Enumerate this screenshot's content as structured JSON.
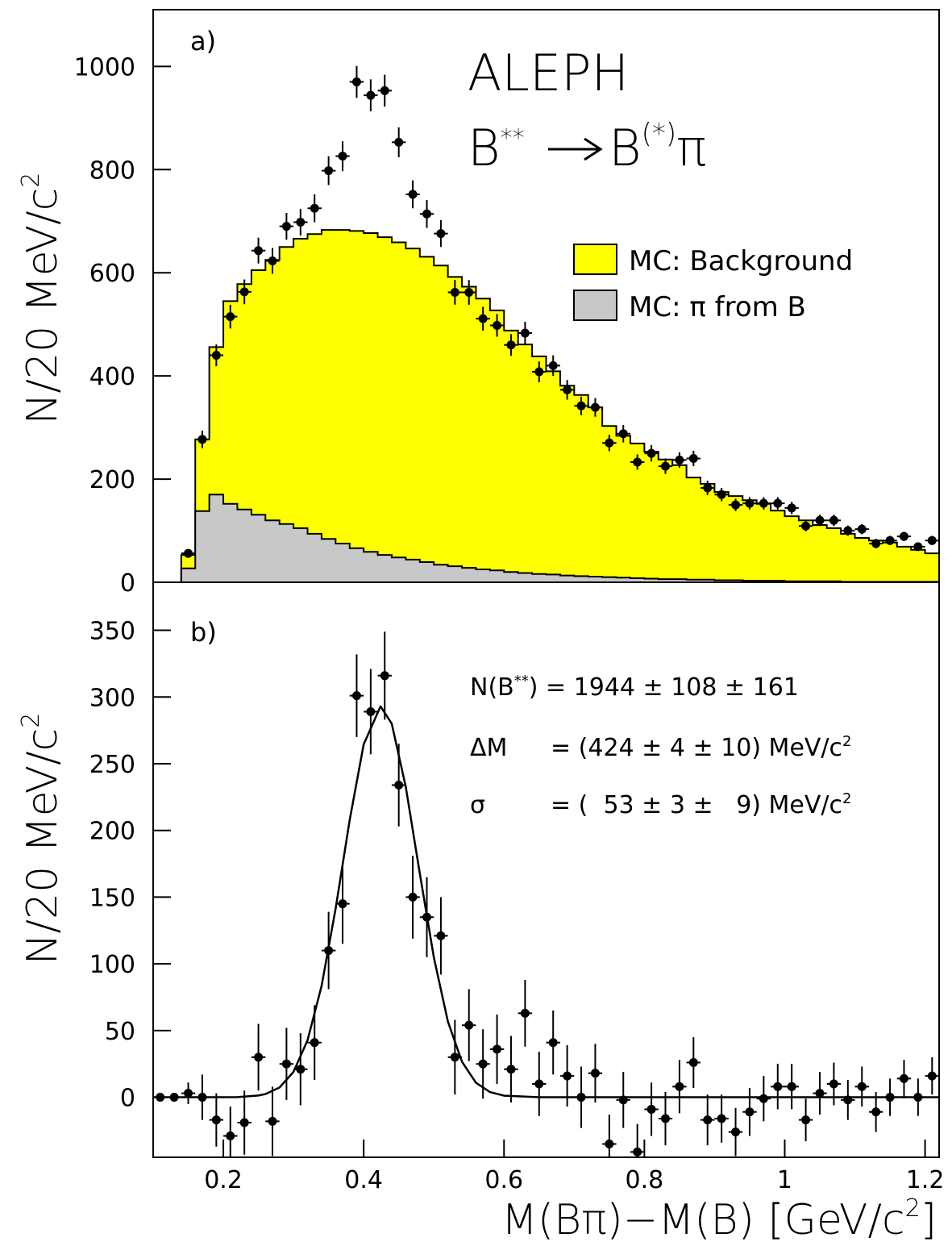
{
  "chart_data": [
    {
      "type": "histogram",
      "label": "a)",
      "title": "ALEPH",
      "process": [
        "B",
        "**",
        "B",
        "(*)",
        "π"
      ],
      "ylabel": [
        "N/20 MeV/c",
        "2"
      ],
      "xlim": [
        0.1,
        1.22
      ],
      "ylim": [
        0,
        1110
      ],
      "yticks": [
        0,
        200,
        400,
        600,
        800,
        1000
      ],
      "bins": [
        0.1,
        0.12,
        0.14,
        0.16,
        0.18,
        0.2,
        0.22,
        0.24,
        0.26,
        0.28,
        0.3,
        0.32,
        0.34,
        0.36,
        0.38,
        0.4,
        0.42,
        0.44,
        0.46,
        0.48,
        0.5,
        0.52,
        0.54,
        0.56,
        0.58,
        0.6,
        0.62,
        0.64,
        0.66,
        0.68,
        0.7,
        0.72,
        0.74,
        0.76,
        0.78,
        0.8,
        0.82,
        0.84,
        0.86,
        0.88,
        0.9,
        0.92,
        0.94,
        0.96,
        0.98,
        1.0,
        1.02,
        1.04,
        1.06,
        1.08,
        1.1,
        1.12,
        1.14,
        1.16,
        1.18,
        1.2,
        1.22
      ],
      "series": [
        {
          "name": "MC: Background",
          "color": "#ffff00",
          "values": [
            0,
            0,
            53,
            277,
            456,
            545,
            578,
            605,
            625,
            650,
            666,
            675,
            683,
            683,
            681,
            677,
            669,
            659,
            647,
            631,
            614,
            592,
            573,
            550,
            527,
            488,
            461,
            438,
            409,
            381,
            363,
            339,
            303,
            284,
            269,
            253,
            238,
            227,
            203,
            191,
            175,
            167,
            159,
            152,
            139,
            128,
            120,
            111,
            105,
            94,
            86,
            81,
            77,
            69,
            63,
            56
          ]
        },
        {
          "name": "MC: π from B",
          "color": "#c8c8c8",
          "values": [
            0,
            0,
            27,
            138,
            170,
            152,
            141,
            131,
            120,
            113,
            105,
            94,
            84,
            75,
            66,
            59,
            53,
            48,
            44,
            39,
            34,
            31,
            28,
            25,
            23,
            20,
            18,
            16,
            15,
            13,
            12,
            11,
            10,
            9,
            8,
            7,
            6,
            6,
            5,
            5,
            4,
            4,
            3,
            3,
            3,
            2,
            2,
            2,
            2,
            1,
            1,
            1,
            1,
            1,
            1,
            1
          ]
        }
      ],
      "points": {
        "color": "#000000",
        "x": [
          0.15,
          0.17,
          0.19,
          0.21,
          0.23,
          0.25,
          0.27,
          0.29,
          0.31,
          0.33,
          0.35,
          0.37,
          0.39,
          0.41,
          0.43,
          0.45,
          0.47,
          0.49,
          0.51,
          0.53,
          0.55,
          0.57,
          0.59,
          0.61,
          0.63,
          0.65,
          0.67,
          0.69,
          0.71,
          0.73,
          0.75,
          0.77,
          0.79,
          0.81,
          0.83,
          0.85,
          0.87,
          0.89,
          0.91,
          0.93,
          0.95,
          0.97,
          0.99,
          1.01,
          1.03,
          1.05,
          1.07,
          1.09,
          1.11,
          1.13,
          1.15,
          1.17,
          1.19,
          1.21
        ],
        "values": [
          56,
          277,
          440,
          515,
          563,
          643,
          623,
          690,
          698,
          725,
          798,
          826,
          970,
          944,
          953,
          853,
          752,
          714,
          676,
          562,
          562,
          511,
          498,
          460,
          483,
          408,
          420,
          373,
          342,
          339,
          270,
          288,
          233,
          250,
          225,
          237,
          240,
          183,
          170,
          150,
          153,
          153,
          153,
          144,
          109,
          120,
          120,
          100,
          103,
          75,
          81,
          89,
          69,
          81
        ],
        "errors": [
          7,
          17,
          21,
          23,
          24,
          25,
          25,
          26,
          26,
          27,
          28,
          29,
          31,
          31,
          31,
          29,
          27,
          27,
          26,
          24,
          24,
          23,
          22,
          21,
          22,
          20,
          20,
          19,
          18,
          18,
          16,
          17,
          15,
          16,
          15,
          15,
          15,
          14,
          13,
          12,
          12,
          12,
          12,
          12,
          10,
          11,
          11,
          10,
          10,
          9,
          9,
          9,
          8,
          9
        ]
      }
    },
    {
      "type": "scatter",
      "label": "b)",
      "ylabel": [
        "N/20 MeV/c",
        "2"
      ],
      "xlabel": [
        "M(Bπ)−M(B) [GeV/c",
        "2",
        "]"
      ],
      "xlim": [
        0.1,
        1.22
      ],
      "xticks": [
        0.2,
        0.4,
        0.6,
        0.8,
        1,
        1.2
      ],
      "ylim": [
        -45,
        386
      ],
      "yticks": [
        0,
        50,
        100,
        150,
        200,
        250,
        300,
        350
      ],
      "color": "#000000",
      "x": [
        0.11,
        0.13,
        0.15,
        0.17,
        0.19,
        0.21,
        0.23,
        0.25,
        0.27,
        0.29,
        0.31,
        0.33,
        0.35,
        0.37,
        0.39,
        0.41,
        0.43,
        0.45,
        0.47,
        0.49,
        0.51,
        0.53,
        0.55,
        0.57,
        0.59,
        0.61,
        0.63,
        0.65,
        0.67,
        0.69,
        0.71,
        0.73,
        0.75,
        0.77,
        0.79,
        0.81,
        0.83,
        0.85,
        0.87,
        0.89,
        0.91,
        0.93,
        0.95,
        0.97,
        0.99,
        1.01,
        1.03,
        1.05,
        1.07,
        1.09,
        1.11,
        1.13,
        1.15,
        1.17,
        1.19,
        1.21
      ],
      "values": [
        0,
        0,
        3,
        0,
        -17,
        -29,
        -19,
        30,
        -18,
        25,
        21,
        41,
        110,
        145,
        301,
        289,
        316,
        234,
        150,
        135,
        121,
        30,
        54,
        25,
        36,
        21,
        63,
        10,
        41,
        16,
        0,
        18,
        -35,
        -2,
        -41,
        -9,
        -16,
        8,
        26,
        -17,
        -16,
        -26,
        -11,
        -1,
        8,
        8,
        -17,
        3,
        10,
        -2,
        8,
        -11,
        0,
        14,
        0,
        16
      ],
      "errors": [
        3,
        3,
        8,
        17,
        20,
        22,
        24,
        25,
        26,
        27,
        27,
        28,
        29,
        30,
        31,
        32,
        33,
        31,
        31,
        30,
        29,
        28,
        27,
        26,
        26,
        25,
        25,
        24,
        24,
        23,
        23,
        22,
        22,
        21,
        21,
        20,
        20,
        20,
        19,
        19,
        18,
        18,
        18,
        17,
        17,
        17,
        16,
        16,
        16,
        15,
        15,
        15,
        14,
        14,
        14,
        14
      ],
      "fit": {
        "x": [
          0.1,
          0.2,
          0.22,
          0.25,
          0.26,
          0.28,
          0.3,
          0.32,
          0.34,
          0.36,
          0.38,
          0.4,
          0.424,
          0.44,
          0.46,
          0.48,
          0.5,
          0.52,
          0.54,
          0.56,
          0.58,
          0.6,
          0.65,
          1.22
        ],
        "values": [
          0,
          0,
          0.1,
          1.3,
          2.4,
          7.3,
          19,
          42.7,
          83.4,
          141.3,
          207.6,
          264.5,
          293,
          280,
          232.6,
          167.7,
          104.8,
          56.8,
          26.7,
          10.9,
          3.9,
          1.2,
          0,
          0
        ]
      },
      "annotations": [
        [
          "N(B",
          "**",
          ") = 1944 ± 108 ± 161"
        ],
        [
          "ΔM",
          "= (424 ± 4 ± 10) MeV/c",
          "2"
        ],
        [
          "σ",
          "= (  53 ± 3 ±   9) MeV/c",
          "2"
        ]
      ]
    }
  ]
}
